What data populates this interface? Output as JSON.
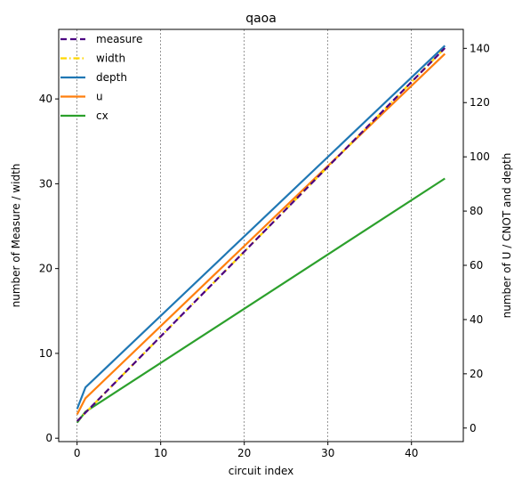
{
  "chart_data": {
    "type": "line",
    "title": "qaoa",
    "xlabel": "circuit index",
    "ylabel_left": "number of Measure / width",
    "ylabel_right": "number of U / CNOT and depth",
    "x_range": [
      -2.2,
      46.2
    ],
    "ylim_left": [
      -0.4,
      48.2
    ],
    "ylim_right": [
      -5,
      147
    ],
    "x_ticks": [
      0,
      10,
      20,
      30,
      40
    ],
    "y_ticks_left": [
      0,
      10,
      20,
      30,
      40
    ],
    "y_ticks_right": [
      0,
      20,
      40,
      60,
      80,
      100,
      120,
      140
    ],
    "vertical_grid": true,
    "legend_position": "upper left",
    "series": [
      {
        "name": "measure",
        "axis": "left",
        "style": "dashed",
        "color": "#4b0082",
        "x": [
          0,
          44
        ],
        "y": [
          2,
          46
        ]
      },
      {
        "name": "width",
        "axis": "left",
        "style": "dashdot",
        "color": "#ffd700",
        "x": [
          0,
          44
        ],
        "y": [
          2,
          46
        ]
      },
      {
        "name": "depth",
        "axis": "right",
        "style": "solid",
        "color": "#1f77b4",
        "x": [
          0,
          1,
          44
        ],
        "y": [
          7,
          15,
          141
        ]
      },
      {
        "name": "u",
        "axis": "right",
        "style": "solid",
        "color": "#ff7f0e",
        "x": [
          0,
          1,
          44
        ],
        "y": [
          5,
          11,
          138
        ]
      },
      {
        "name": "cx",
        "axis": "right",
        "style": "solid",
        "color": "#2ca02c",
        "x": [
          0,
          1,
          44
        ],
        "y": [
          2,
          6,
          92
        ]
      }
    ]
  }
}
